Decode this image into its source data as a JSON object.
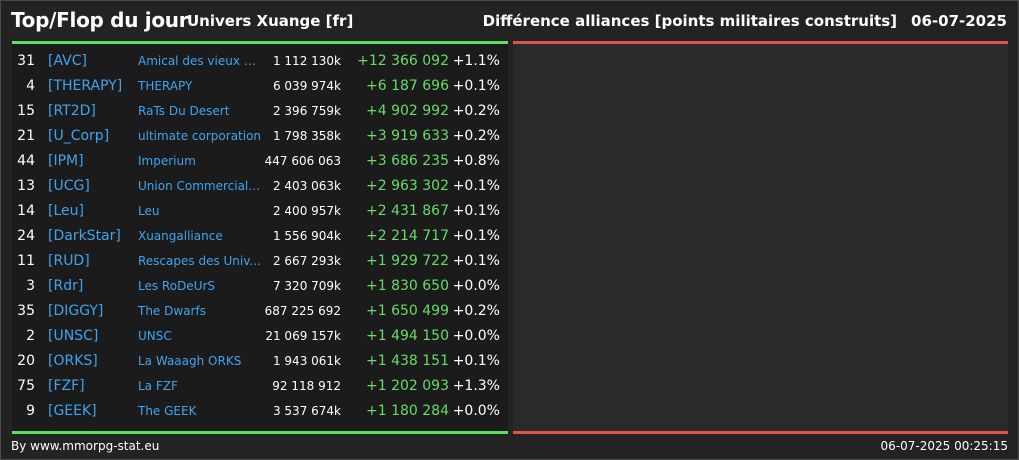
{
  "header": {
    "title": "Top/Flop du jour",
    "universe": "Univers Xuange [fr]",
    "description": "Différence alliances [points militaires construits]",
    "date": "06-07-2025"
  },
  "rows": [
    {
      "rank": "31",
      "tag": "[AVC]",
      "name": "Amical des vieux co...",
      "points": "1 112 130k",
      "diff": "+12 366 092",
      "pct": "+1.1%"
    },
    {
      "rank": "4",
      "tag": "[THERAPY]",
      "name": "THERAPY",
      "points": "6 039 974k",
      "diff": "+6 187 696",
      "pct": "+0.1%"
    },
    {
      "rank": "15",
      "tag": "[RT2D]",
      "name": "RaTs Du Desert",
      "points": "2 396 759k",
      "diff": "+4 902 992",
      "pct": "+0.2%"
    },
    {
      "rank": "21",
      "tag": "[U_Corp]",
      "name": "ultimate corporation",
      "points": "1 798 358k",
      "diff": "+3 919 633",
      "pct": "+0.2%"
    },
    {
      "rank": "44",
      "tag": "[IPM]",
      "name": "Imperium",
      "points": "447 606 063",
      "diff": "+3 686 235",
      "pct": "+0.8%"
    },
    {
      "rank": "13",
      "tag": "[UCG]",
      "name": "Union Commerciale...",
      "points": "2 403 063k",
      "diff": "+2 963 302",
      "pct": "+0.1%"
    },
    {
      "rank": "14",
      "tag": "[Leu]",
      "name": "Leu",
      "points": "2 400 957k",
      "diff": "+2 431 867",
      "pct": "+0.1%"
    },
    {
      "rank": "24",
      "tag": "[DarkStar]",
      "name": "Xuangalliance",
      "points": "1 556 904k",
      "diff": "+2 214 717",
      "pct": "+0.1%"
    },
    {
      "rank": "11",
      "tag": "[RUD]",
      "name": "Rescapes des Univ...",
      "points": "2 667 293k",
      "diff": "+1 929 722",
      "pct": "+0.1%"
    },
    {
      "rank": "3",
      "tag": "[Rdr]",
      "name": "Les RoDeUrS",
      "points": "7 320 709k",
      "diff": "+1 830 650",
      "pct": "+0.0%"
    },
    {
      "rank": "35",
      "tag": "[DIGGY]",
      "name": "The Dwarfs",
      "points": "687 225 692",
      "diff": "+1 650 499",
      "pct": "+0.2%"
    },
    {
      "rank": "2",
      "tag": "[UNSC]",
      "name": "UNSC",
      "points": "21 069 157k",
      "diff": "+1 494 150",
      "pct": "+0.0%"
    },
    {
      "rank": "20",
      "tag": "[ORKS]",
      "name": "La Waaagh ORKS",
      "points": "1 943 061k",
      "diff": "+1 438 151",
      "pct": "+0.1%"
    },
    {
      "rank": "75",
      "tag": "[FZF]",
      "name": "La FZF",
      "points": "92 118 912",
      "diff": "+1 202 093",
      "pct": "+1.3%"
    },
    {
      "rank": "9",
      "tag": "[GEEK]",
      "name": "The GEEK",
      "points": "3 537 674k",
      "diff": "+1 180 284",
      "pct": "+0.0%"
    }
  ],
  "footer": {
    "credit": "By www.mmorpg-stat.eu",
    "timestamp": "06-07-2025 00:25:15"
  },
  "colors": {
    "top_accent": "#5ee05e",
    "flop_accent": "#e0524a",
    "link": "#3fa4f0",
    "positive": "#66dd66"
  }
}
